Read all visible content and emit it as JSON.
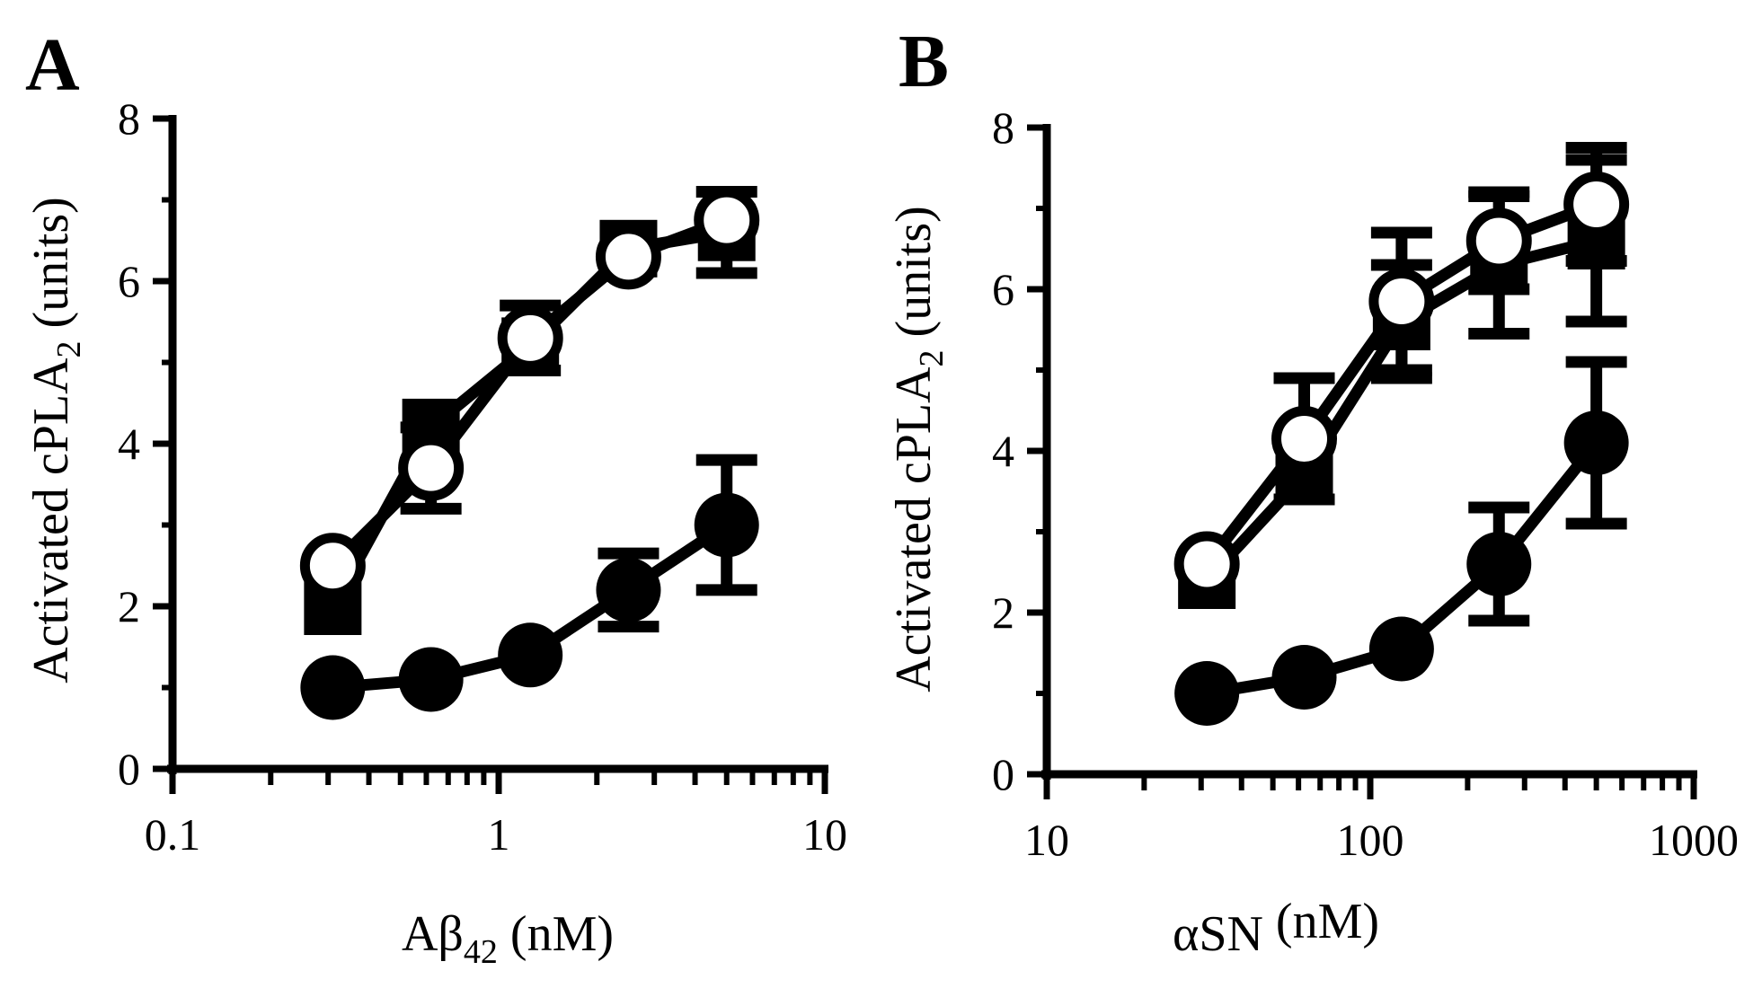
{
  "figure": {
    "background": "#ffffff",
    "ink": "#000000"
  },
  "chart_data": [
    {
      "panel": "A",
      "type": "scatter",
      "connected": true,
      "xscale": "log",
      "xlim": [
        0.1,
        10
      ],
      "ylim": [
        0,
        8
      ],
      "xticks": [
        0.1,
        1,
        10
      ],
      "xtick_labels": [
        "0.1",
        "1",
        "10"
      ],
      "yticks": [
        0,
        2,
        4,
        6,
        8
      ],
      "ytick_labels": [
        "0",
        "2",
        "4",
        "6",
        "8"
      ],
      "xlabel": {
        "main": "Aβ",
        "sub": "42",
        "tail": " (nM)"
      },
      "ylabel": {
        "main": "Activated cPLA",
        "sub": "2",
        "tail": " (units)"
      },
      "series": [
        {
          "marker": "filled-circle",
          "x": [
            0.31,
            0.62,
            1.25,
            2.5,
            5.0
          ],
          "y": [
            1.0,
            1.1,
            1.4,
            2.2,
            3.0
          ],
          "err": [
            0,
            0,
            0,
            0.45,
            0.8
          ]
        },
        {
          "marker": "filled-square",
          "x": [
            0.31,
            0.62,
            1.25,
            2.5,
            5.0
          ],
          "y": [
            2.0,
            4.2,
            5.2,
            6.4,
            6.6
          ],
          "err": [
            0,
            0,
            0,
            0,
            0.5
          ]
        },
        {
          "marker": "open-circle",
          "x": [
            0.31,
            0.62,
            1.25,
            2.5,
            5.0
          ],
          "y": [
            2.5,
            3.7,
            5.3,
            6.3,
            6.75
          ],
          "err": [
            0,
            0.5,
            0.4,
            0,
            0
          ]
        }
      ]
    },
    {
      "panel": "B",
      "type": "scatter",
      "connected": true,
      "xscale": "log",
      "xlim": [
        10,
        1000
      ],
      "ylim": [
        0,
        8
      ],
      "xticks": [
        10,
        100,
        1000
      ],
      "xtick_labels": [
        "10",
        "100",
        "1000"
      ],
      "yticks": [
        0,
        2,
        4,
        6,
        8
      ],
      "ytick_labels": [
        "0",
        "2",
        "4",
        "6",
        "8"
      ],
      "xlabel": {
        "main": "αSN",
        "sub": "",
        "tail": " (nM)"
      },
      "ylabel": {
        "main": "Activated cPLA",
        "sub": "2",
        "tail": " (units)"
      },
      "series": [
        {
          "marker": "filled-circle",
          "x": [
            31.25,
            62.5,
            125,
            250,
            500
          ],
          "y": [
            1.0,
            1.2,
            1.55,
            2.6,
            4.1
          ],
          "err": [
            0,
            0,
            0,
            0.7,
            1.0
          ]
        },
        {
          "marker": "filled-square",
          "x": [
            31.25,
            62.5,
            125,
            250,
            500
          ],
          "y": [
            2.4,
            3.7,
            5.6,
            6.3,
            6.6
          ],
          "err": [
            0,
            0,
            0.7,
            0.85,
            1.0
          ]
        },
        {
          "marker": "open-circle",
          "x": [
            31.25,
            62.5,
            125,
            250,
            500
          ],
          "y": [
            2.6,
            4.15,
            5.85,
            6.6,
            7.05
          ],
          "err": [
            0,
            0.75,
            0.85,
            0.6,
            0.7
          ]
        }
      ]
    }
  ]
}
